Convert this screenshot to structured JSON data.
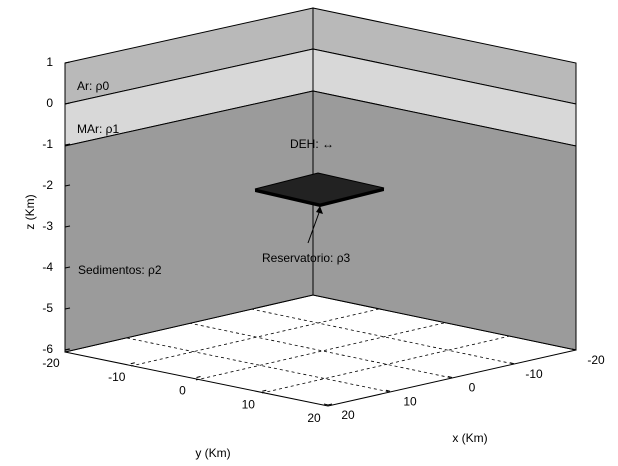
{
  "z_axis": {
    "label": "z (Km)",
    "ticks": [
      1,
      0,
      -1,
      -2,
      -3,
      -4,
      -5,
      -6
    ]
  },
  "x_axis": {
    "label": "x (Km)",
    "ticks": [
      -20,
      -10,
      0,
      10,
      20
    ]
  },
  "y_axis": {
    "label": "y (Km)",
    "ticks": [
      -20,
      -10,
      0,
      10,
      20
    ]
  },
  "layers": [
    {
      "label": "Ar: ρ0"
    },
    {
      "label": "MAr: ρ1"
    },
    {
      "label": "Sedimentos: ρ2"
    }
  ],
  "annotations": {
    "deh": "DEH: ↔",
    "reservoir": "Reservatorio: ρ3"
  }
}
